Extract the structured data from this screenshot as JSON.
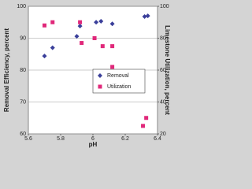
{
  "chart_data": {
    "type": "scatter",
    "x_label": "pH",
    "y_label": "Removal Efficiency, percent",
    "y2_label": "Limestone Utilization, percent",
    "xlim": [
      5.6,
      6.4
    ],
    "xticks": [
      5.6,
      5.8,
      6,
      6.2,
      6.4
    ],
    "ylim": [
      60,
      100
    ],
    "yticks": [
      60,
      70,
      80,
      90,
      100
    ],
    "y2lim": [
      20,
      100
    ],
    "y2ticks": [
      20,
      40,
      60,
      80,
      100
    ],
    "grid": true,
    "legend": "right",
    "series": [
      {
        "name": "Removal",
        "color": "#3a3f9a",
        "marker": "diamond",
        "x": [
          5.7,
          5.75,
          5.9,
          5.92,
          6.02,
          6.05,
          6.12,
          6.32,
          6.34
        ],
        "values": [
          84.4,
          87,
          90.6,
          93.8,
          95,
          95.3,
          94.5,
          96.8,
          97
        ]
      },
      {
        "name": "Utilization",
        "color": "#e0287a",
        "marker": "square",
        "axis": "y2",
        "x": [
          5.7,
          5.75,
          5.92,
          5.93,
          6.01,
          6.06,
          6.12,
          6.12,
          6.31,
          6.33
        ],
        "values": [
          88,
          90,
          90,
          77,
          80,
          75,
          75,
          62,
          25,
          30
        ]
      }
    ]
  }
}
